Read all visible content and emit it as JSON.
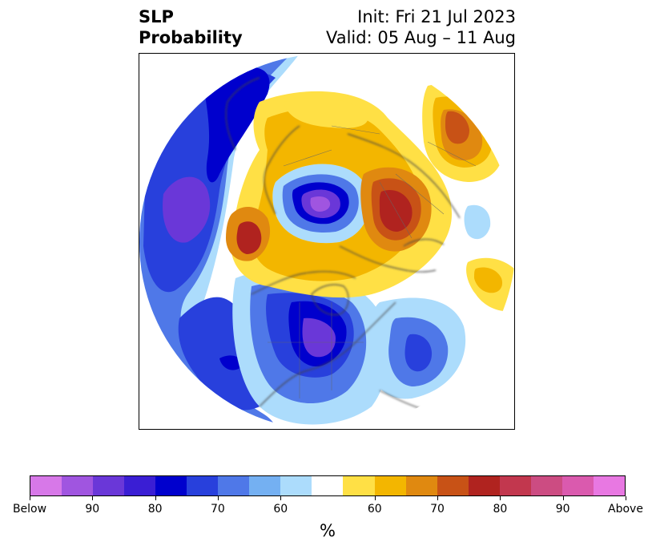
{
  "title": {
    "left_line1": "SLP",
    "left_line2": "Probability",
    "right_line1": "Init: Fri 21 Jul 2023",
    "right_line2": "Valid: 05 Aug – 11 Aug"
  },
  "colorbar": {
    "units": "%",
    "colors": [
      "#d778e8",
      "#a055e0",
      "#6a37d8",
      "#3a1ed4",
      "#0000cd",
      "#2840dc",
      "#4f78e8",
      "#74b0f2",
      "#acdcfc",
      "#ffffff",
      "#ffe045",
      "#f3b600",
      "#e08910",
      "#c85216",
      "#b0231f",
      "#c2374e",
      "#cc4c82",
      "#da5aae",
      "#e878e2"
    ],
    "tick_labels": [
      "Below",
      "90",
      "80",
      "70",
      "60",
      "60",
      "70",
      "80",
      "90",
      "Above"
    ]
  },
  "map": {
    "projection": "north-polar-stereographic",
    "anomalies": [
      {
        "region": "arctic-ocean-low",
        "sign": "below",
        "peak_probability": 90
      },
      {
        "region": "northeast-pacific-low",
        "sign": "below",
        "peak_probability": 90
      },
      {
        "region": "central-north-america-low",
        "sign": "below",
        "peak_probability": 80
      },
      {
        "region": "north-atlantic-low",
        "sign": "below",
        "peak_probability": 70
      },
      {
        "region": "western-russia-high",
        "sign": "above",
        "peak_probability": 80
      },
      {
        "region": "east-siberia-high",
        "sign": "above",
        "peak_probability": 70
      },
      {
        "region": "northern-scandinavia-high",
        "sign": "above",
        "peak_probability": 70
      },
      {
        "region": "mediterranean-high",
        "sign": "above",
        "peak_probability": 60
      }
    ]
  }
}
